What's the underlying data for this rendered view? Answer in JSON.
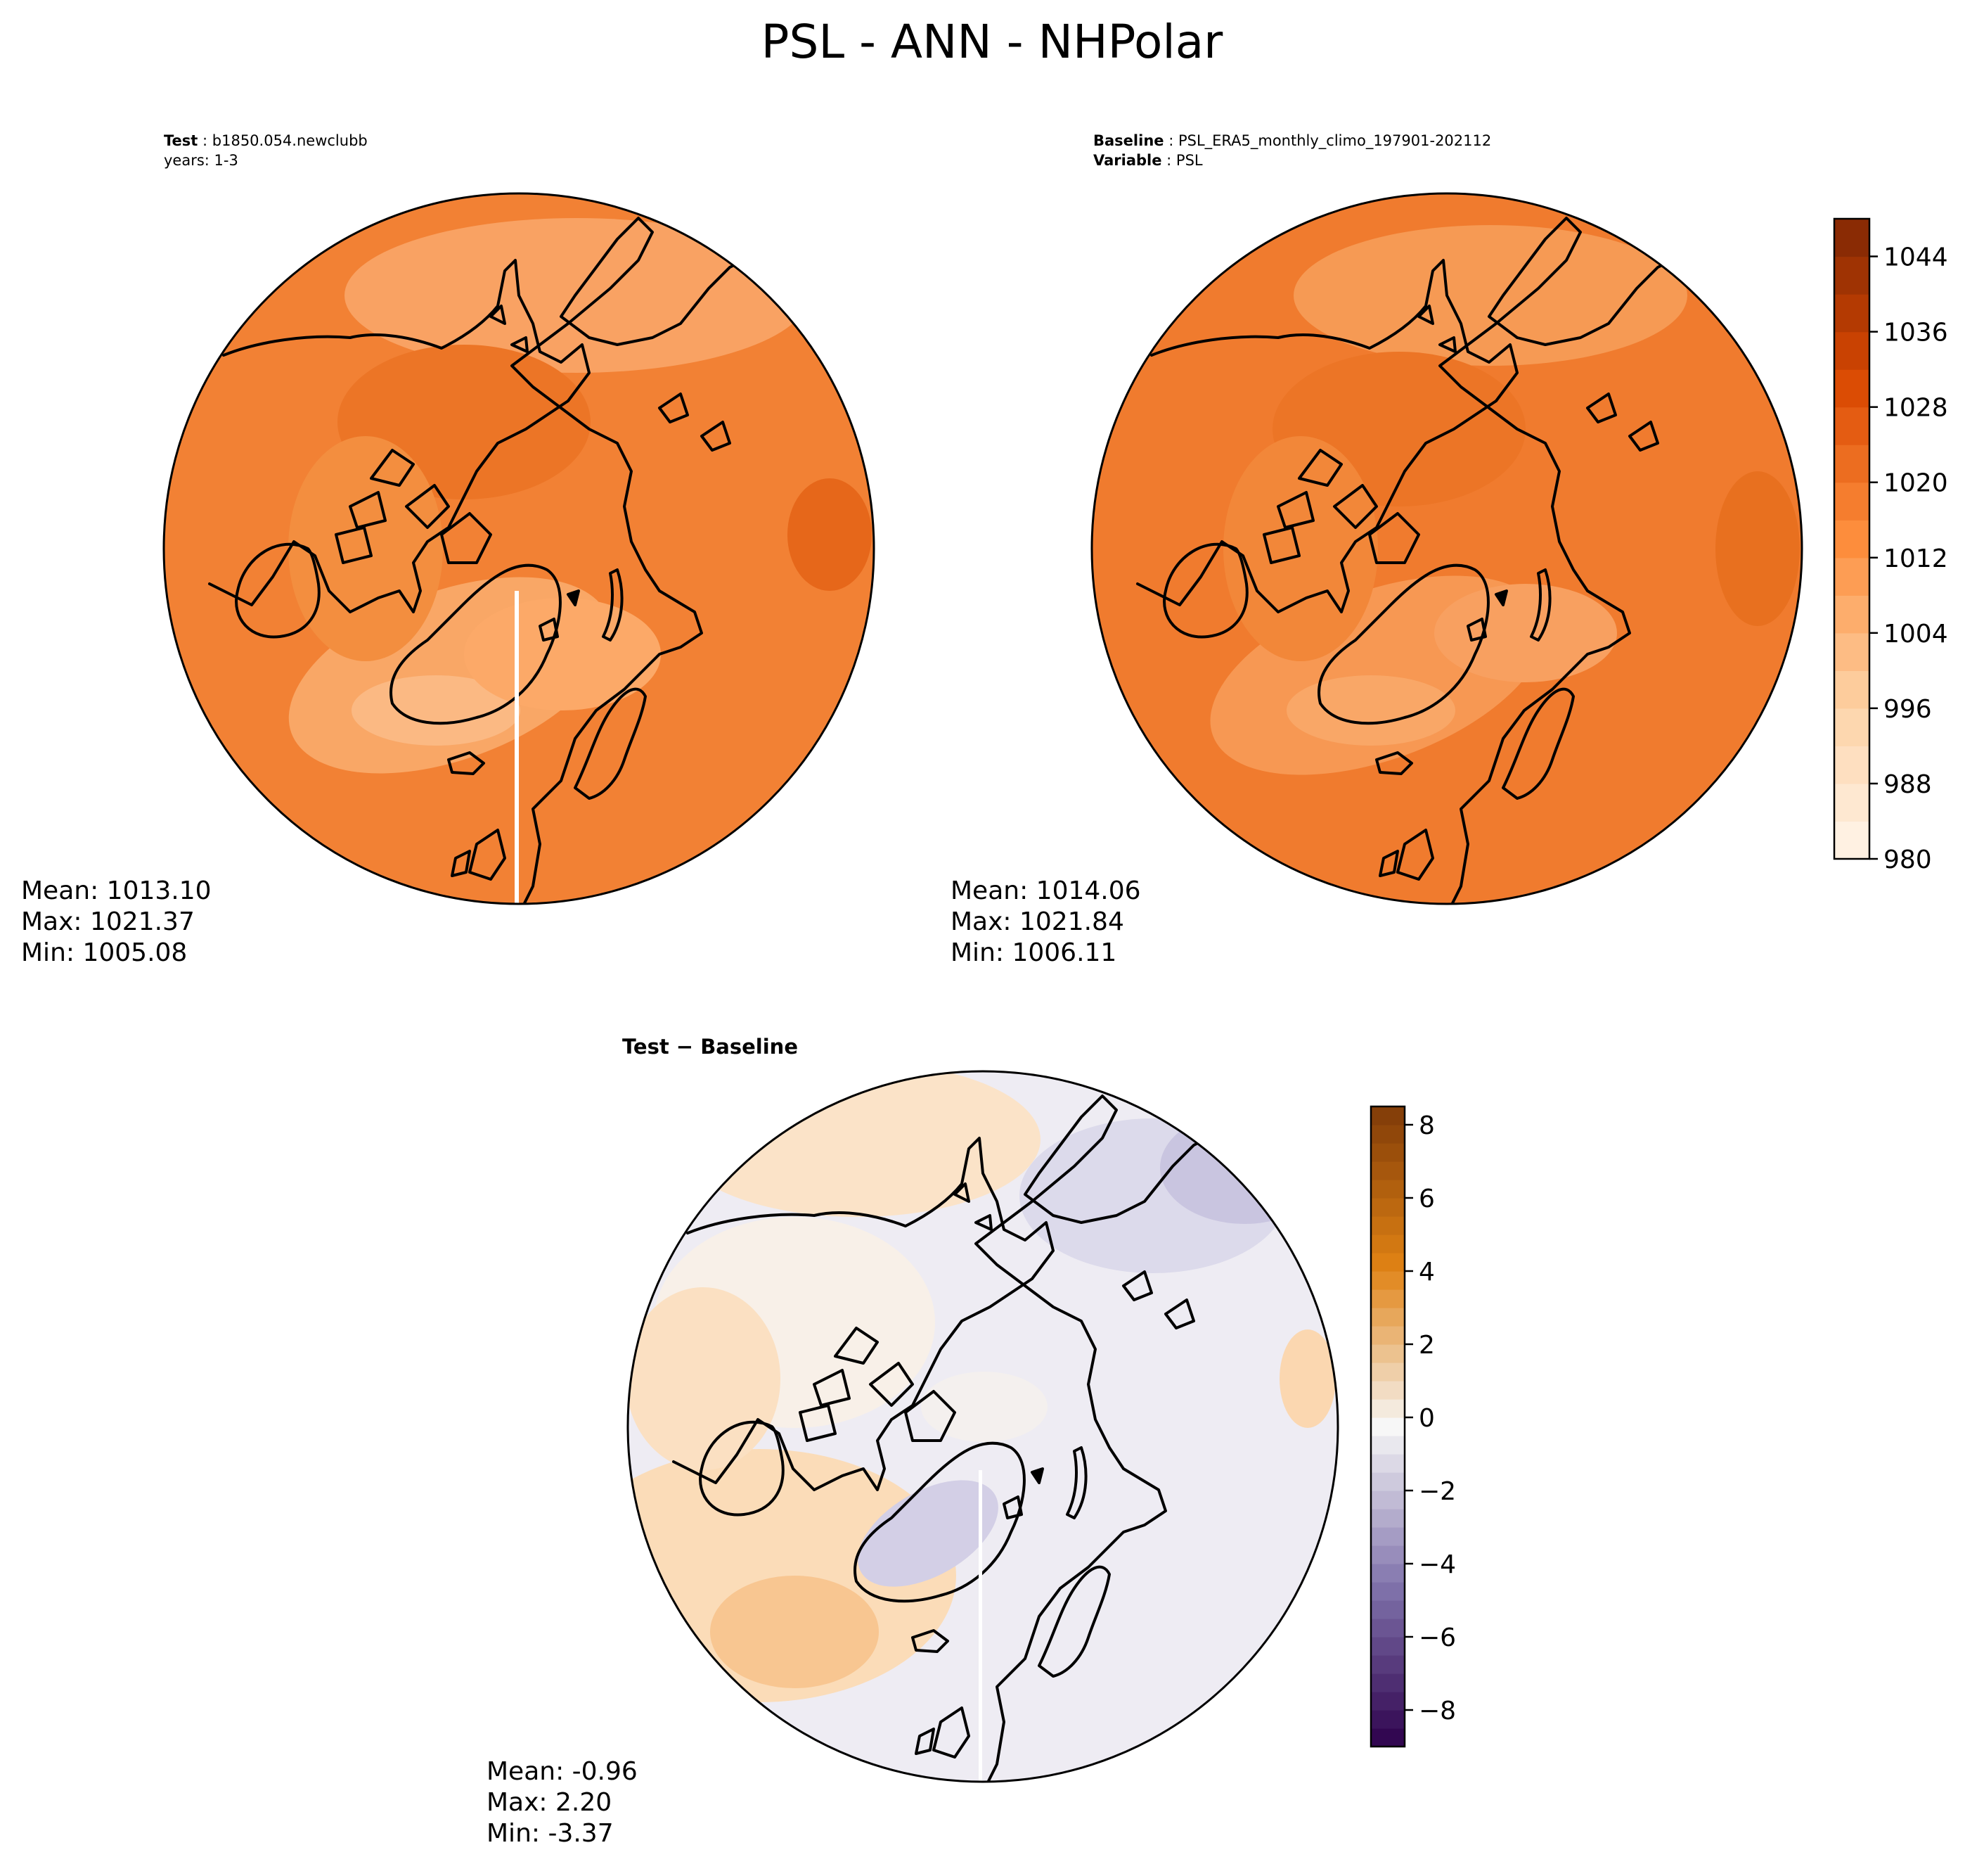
{
  "title": "PSL - ANN - NHPolar",
  "chart_data": [
    {
      "type": "heatmap",
      "projection": "north-polar-stereographic",
      "panel": "test",
      "label_bold": "Test",
      "label_value": "b1850.054.newclubb",
      "subtitle": "years: 1-3",
      "stats": {
        "mean": "Mean: 1013.10",
        "max": "Max: 1021.37",
        "min": "Min: 1005.08"
      },
      "value_range": [
        1005.08,
        1021.37
      ],
      "colormap": "Oranges"
    },
    {
      "type": "heatmap",
      "projection": "north-polar-stereographic",
      "panel": "baseline",
      "label_bold": "Baseline",
      "label_value": "PSL_ERA5_monthly_climo_197901-202112",
      "label2_bold": "Variable",
      "label2_value": "PSL",
      "stats": {
        "mean": "Mean: 1014.06",
        "max": "Max: 1021.84",
        "min": "Min: 1006.11"
      },
      "value_range": [
        1006.11,
        1021.84
      ],
      "colormap": "Oranges",
      "colorbar": {
        "range": [
          980,
          1048
        ],
        "ticks": [
          "980",
          "988",
          "996",
          "1004",
          "1012",
          "1020",
          "1028",
          "1036",
          "1044"
        ],
        "tick_values": [
          980,
          988,
          996,
          1004,
          1012,
          1020,
          1028,
          1036,
          1044
        ],
        "levels": 17
      }
    },
    {
      "type": "heatmap",
      "projection": "north-polar-stereographic",
      "panel": "difference",
      "label": "Test − Baseline",
      "stats": {
        "mean": "Mean: -0.96",
        "max": "Max:  2.20",
        "min": "Min: -3.37"
      },
      "value_range": [
        -3.37,
        2.2
      ],
      "colormap": "PuOr_r",
      "colorbar": {
        "range": [
          -9,
          8.5
        ],
        "ticks": [
          "−8",
          "−6",
          "−4",
          "−2",
          "0",
          "2",
          "4",
          "6",
          "8"
        ],
        "tick_values": [
          -8,
          -6,
          -4,
          -2,
          0,
          2,
          4,
          6,
          8
        ],
        "levels": 35
      }
    }
  ]
}
